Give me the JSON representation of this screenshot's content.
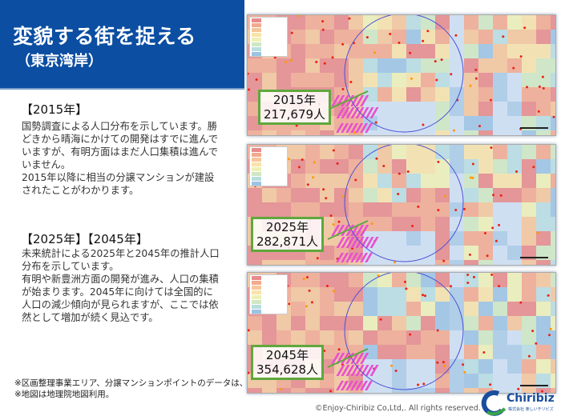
{
  "header": {
    "title": "変貌する街を捉える",
    "subtitle": "（東京湾岸）",
    "color": "#0b4ea2"
  },
  "section_2015": {
    "heading": "【2015年】",
    "paragraphs": [
      "国勢調査による人口分布を示しています。勝どきから晴海にかけての開発はすでに進んでいますが、有明方面はまだ人口集積は進んでいません。",
      "2015年以降に相当の分譲マンションが建設されたことがわかります。"
    ]
  },
  "section_future": {
    "heading": "【2025年】【2045年】",
    "paragraphs": [
      "未来統計による2025年と2045年の推計人口分布を示しています。",
      "有明や新豊洲方面の開発が進み、人口の集積が始まります。2045年に向けては全国的に人口の減少傾向が見られますが、ここでは依然として増加が続く見込です。"
    ]
  },
  "notes": [
    "※区画整理事業エリア、分譲マンションポイントのデータは、本製品に含みません。",
    "※地図は地理院地図利用。"
  ],
  "maps": [
    {
      "year_label": "2015年",
      "population_label": "217,679人"
    },
    {
      "year_label": "2025年",
      "population_label": "282,871人"
    },
    {
      "year_label": "2045年",
      "population_label": "354,628人"
    }
  ],
  "legend_colors": [
    "#e88a8a",
    "#f3a98e",
    "#f6c69a",
    "#f8e3a8",
    "#eef0b5",
    "#cfe7c2",
    "#b7dde0",
    "#9cc3e3"
  ],
  "footer": {
    "copyright": "©Enjoy-Chiribiz  Co,Ltd,. All rights reserved.",
    "logo_text": "Chiribiz",
    "logo_sub": "株式会社 楽しいチリビズ"
  }
}
